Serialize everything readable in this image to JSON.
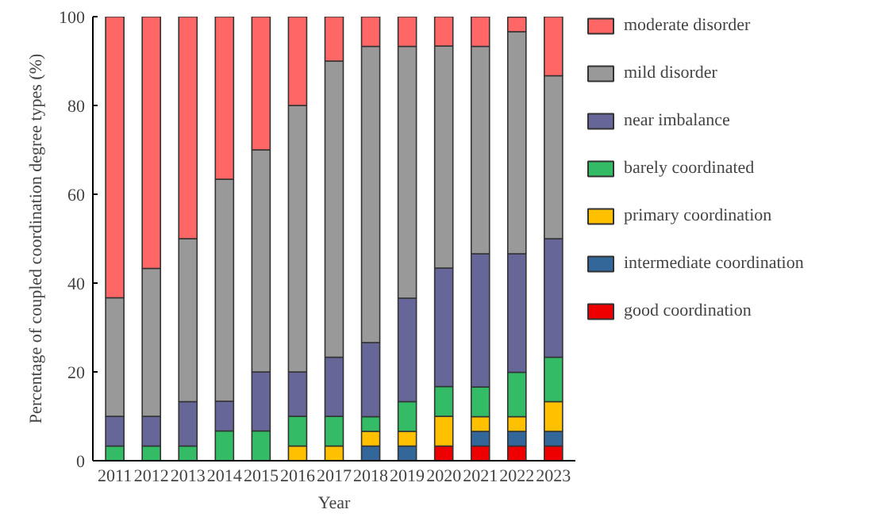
{
  "chart_data": {
    "type": "bar",
    "stacked": true,
    "xlabel": "Year",
    "ylabel": "Percentage of coupled coordination degree types (%)",
    "categories": [
      "2011",
      "2012",
      "2013",
      "2014",
      "2015",
      "2016",
      "2017",
      "2018",
      "2019",
      "2020",
      "2021",
      "2022",
      "2023"
    ],
    "ylim": [
      0,
      100
    ],
    "yticks": [
      0,
      20,
      40,
      60,
      80,
      100
    ],
    "grid": false,
    "legend": "right",
    "series": [
      {
        "name": "good coordination",
        "color": "#ee0000",
        "values": [
          0,
          0,
          0,
          0,
          0,
          0,
          0,
          0,
          0,
          3.3,
          3.3,
          3.3,
          3.3
        ]
      },
      {
        "name": "intermediate coordination",
        "color": "#336699",
        "values": [
          0,
          0,
          0,
          0,
          0,
          0,
          0,
          3.3,
          3.3,
          0,
          3.3,
          3.3,
          3.3
        ]
      },
      {
        "name": "primary coordination",
        "color": "#ffc000",
        "values": [
          0,
          0,
          0,
          0,
          0,
          3.3,
          3.3,
          3.3,
          3.3,
          6.7,
          3.3,
          3.3,
          6.7
        ]
      },
      {
        "name": "barely coordinated",
        "color": "#33bb66",
        "values": [
          3.3,
          3.3,
          3.3,
          6.7,
          6.7,
          6.7,
          6.7,
          3.3,
          6.7,
          6.7,
          6.7,
          10,
          10
        ]
      },
      {
        "name": "near imbalance",
        "color": "#666699",
        "values": [
          6.7,
          6.7,
          10,
          6.7,
          13.3,
          10,
          13.3,
          16.7,
          23.3,
          26.7,
          30,
          26.7,
          26.7
        ]
      },
      {
        "name": "mild disorder",
        "color": "#999999",
        "values": [
          26.7,
          33.3,
          36.7,
          50,
          50,
          60,
          66.7,
          66.7,
          56.7,
          50,
          46.7,
          50,
          36.7
        ]
      },
      {
        "name": "moderate disorder",
        "color": "#ff6666",
        "values": [
          63.3,
          56.7,
          50,
          36.7,
          30,
          20,
          10,
          6.7,
          6.7,
          6.7,
          6.7,
          3.3,
          13.3
        ]
      }
    ]
  }
}
